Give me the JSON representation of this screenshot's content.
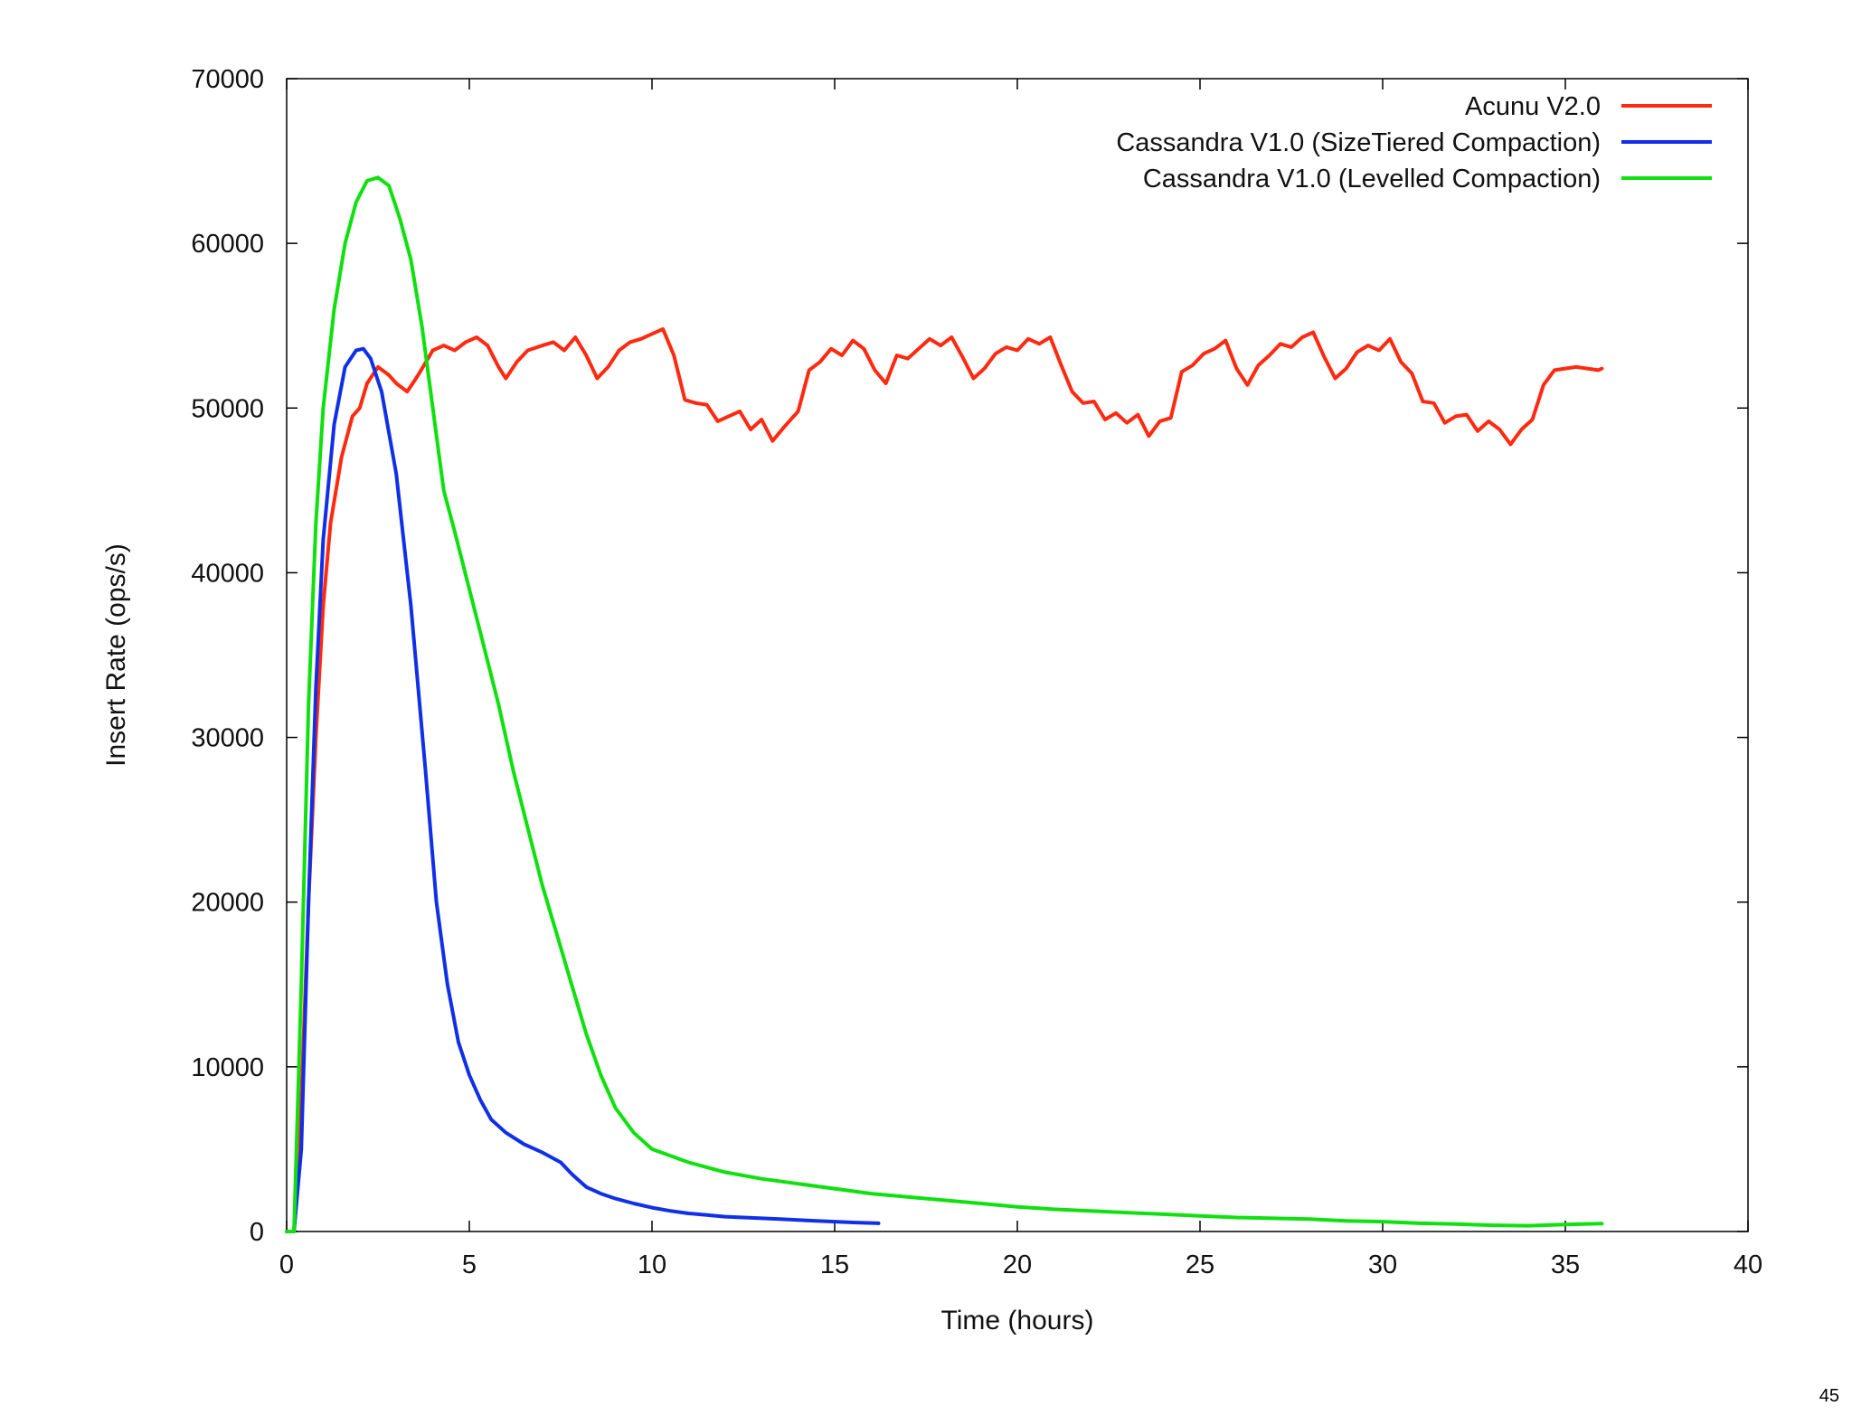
{
  "page": {
    "number": "45"
  },
  "chart_data": {
    "type": "line",
    "title": "",
    "xlabel": "Time (hours)",
    "ylabel": "Insert Rate (ops/s)",
    "xlim": [
      0,
      40
    ],
    "ylim": [
      0,
      70000
    ],
    "xticks": [
      0,
      5,
      10,
      15,
      20,
      25,
      30,
      35,
      40
    ],
    "yticks": [
      0,
      10000,
      20000,
      30000,
      40000,
      50000,
      60000,
      70000
    ],
    "grid": false,
    "legend_position": "top-right",
    "series": [
      {
        "name": "Acunu V2.0",
        "color": "#ff2a10",
        "x": [
          0,
          0.2,
          0.4,
          0.6,
          0.8,
          1.0,
          1.2,
          1.5,
          1.8,
          2.0,
          2.2,
          2.5,
          2.8,
          3.0,
          3.3,
          3.6,
          4.0,
          4.3,
          4.6,
          4.9,
          5.2,
          5.5,
          5.8,
          6.0,
          6.3,
          6.6,
          7.0,
          7.3,
          7.6,
          7.9,
          8.2,
          8.5,
          8.8,
          9.1,
          9.4,
          9.7,
          10.0,
          10.3,
          10.6,
          10.9,
          11.2,
          11.5,
          11.8,
          12.1,
          12.4,
          12.7,
          13.0,
          13.3,
          13.6,
          14.0,
          14.3,
          14.6,
          14.9,
          15.2,
          15.5,
          15.8,
          16.1,
          16.4,
          16.7,
          17.0,
          17.3,
          17.6,
          17.9,
          18.2,
          18.5,
          18.8,
          19.1,
          19.4,
          19.7,
          20.0,
          20.3,
          20.6,
          20.9,
          21.2,
          21.5,
          21.8,
          22.1,
          22.4,
          22.7,
          23.0,
          23.3,
          23.6,
          23.9,
          24.2,
          24.5,
          24.8,
          25.1,
          25.4,
          25.7,
          26.0,
          26.3,
          26.6,
          26.9,
          27.2,
          27.5,
          27.8,
          28.1,
          28.4,
          28.7,
          29.0,
          29.3,
          29.6,
          29.9,
          30.2,
          30.5,
          30.8,
          31.1,
          31.4,
          31.7,
          32.0,
          32.3,
          32.6,
          32.9,
          33.2,
          33.5,
          33.8,
          34.1,
          34.4,
          34.7,
          35.0,
          35.3,
          35.6,
          35.9,
          36.0
        ],
        "y": [
          0,
          0,
          8000,
          20000,
          30000,
          38000,
          43000,
          47000,
          49500,
          50000,
          51500,
          52500,
          52000,
          51500,
          51000,
          52000,
          53500,
          53800,
          53500,
          54000,
          54300,
          53800,
          52500,
          51800,
          52800,
          53500,
          53800,
          54000,
          53500,
          54300,
          53200,
          51800,
          52500,
          53500,
          54000,
          54200,
          54500,
          54800,
          53200,
          50500,
          50300,
          50200,
          49200,
          49500,
          49800,
          48700,
          49300,
          48000,
          48800,
          49800,
          52300,
          52800,
          53600,
          53200,
          54100,
          53600,
          52300,
          51500,
          53200,
          53000,
          53600,
          54200,
          53800,
          54300,
          53100,
          51800,
          52400,
          53300,
          53700,
          53500,
          54200,
          53900,
          54300,
          52600,
          51000,
          50300,
          50400,
          49300,
          49700,
          49100,
          49600,
          48300,
          49200,
          49400,
          52200,
          52600,
          53300,
          53600,
          54100,
          52400,
          51400,
          52600,
          53200,
          53900,
          53700,
          54300,
          54600,
          53100,
          51800,
          52400,
          53400,
          53800,
          53500,
          54200,
          52800,
          52100,
          50400,
          50300,
          49100,
          49500,
          49600,
          48600,
          49200,
          48700,
          47800,
          48700,
          49300,
          51400,
          52300,
          52400,
          52500,
          52400,
          52300,
          52400
        ],
        "line_width": 4
      },
      {
        "name": "Cassandra V1.0 (SizeTiered Compaction)",
        "color": "#1030e8",
        "x": [
          0,
          0.2,
          0.4,
          0.6,
          0.8,
          1.0,
          1.3,
          1.6,
          1.9,
          2.1,
          2.3,
          2.6,
          3.0,
          3.4,
          3.8,
          4.1,
          4.4,
          4.7,
          5.0,
          5.3,
          5.6,
          6.0,
          6.5,
          7.0,
          7.5,
          7.8,
          8.2,
          8.6,
          9.0,
          9.5,
          10.0,
          10.5,
          11.0,
          11.5,
          12.0,
          12.5,
          13.0,
          13.5,
          14.0,
          14.5,
          15.0,
          15.5,
          16.2
        ],
        "y": [
          0,
          0,
          5000,
          20000,
          33000,
          42000,
          49000,
          52500,
          53500,
          53600,
          53000,
          51000,
          46000,
          38000,
          28000,
          20000,
          15000,
          11500,
          9500,
          8000,
          6800,
          6000,
          5300,
          4800,
          4200,
          3500,
          2700,
          2300,
          2000,
          1700,
          1450,
          1250,
          1100,
          1000,
          900,
          850,
          800,
          750,
          700,
          650,
          600,
          550,
          500
        ],
        "line_width": 4
      },
      {
        "name": "Cassandra V1.0 (Levelled Compaction)",
        "color": "#10e010",
        "x": [
          0,
          0.2,
          0.4,
          0.6,
          0.8,
          1.0,
          1.3,
          1.6,
          1.9,
          2.2,
          2.5,
          2.8,
          3.1,
          3.4,
          3.7,
          4.0,
          4.3,
          4.6,
          5.0,
          5.4,
          5.8,
          6.2,
          6.6,
          7.0,
          7.4,
          7.8,
          8.2,
          8.6,
          9.0,
          9.5,
          10.0,
          11.0,
          12.0,
          13.0,
          14.0,
          15.0,
          16.0,
          17.0,
          18.0,
          19.0,
          20.0,
          21.0,
          22.0,
          23.0,
          24.0,
          25.0,
          26.0,
          27.0,
          28.0,
          29.0,
          30.0,
          31.0,
          32.0,
          33.0,
          34.0,
          35.0,
          36.0
        ],
        "y": [
          0,
          0,
          15000,
          32000,
          43000,
          50000,
          56000,
          60000,
          62500,
          63800,
          64000,
          63500,
          61500,
          59000,
          55000,
          50000,
          45000,
          42500,
          39000,
          35500,
          32000,
          28000,
          24500,
          21000,
          18000,
          15000,
          12000,
          9500,
          7500,
          6000,
          5000,
          4200,
          3600,
          3200,
          2900,
          2600,
          2300,
          2100,
          1900,
          1700,
          1500,
          1350,
          1250,
          1150,
          1050,
          950,
          850,
          800,
          750,
          650,
          600,
          500,
          450,
          380,
          350,
          420,
          480
        ],
        "line_width": 4
      }
    ]
  }
}
